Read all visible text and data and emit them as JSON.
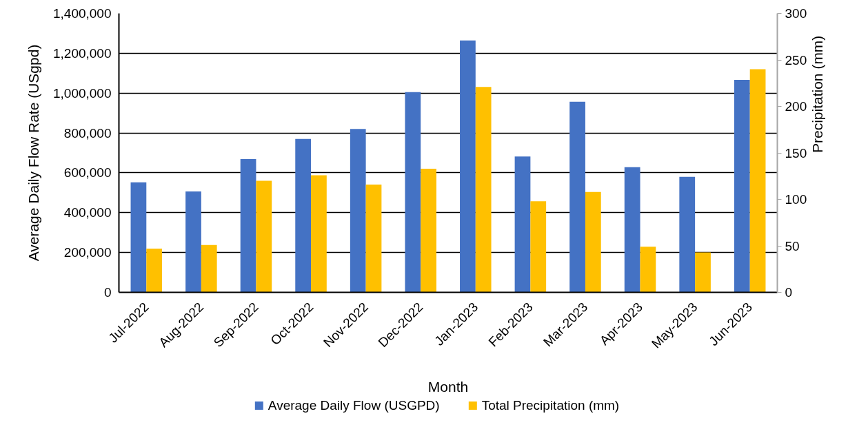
{
  "chart_data": {
    "type": "bar",
    "xlabel": "Month",
    "ylabel": "Average Daily Flow Rate (USgpd)",
    "y2label": "Precipitation (mm)",
    "categories": [
      "Jul-2022",
      "Aug-2022",
      "Sep-2022",
      "Oct-2022",
      "Nov-2022",
      "Dec-2022",
      "Jan-2023",
      "Feb-2023",
      "Mar-2023",
      "Apr-2023",
      "May-2023",
      "Jun-2023"
    ],
    "series": [
      {
        "name": "Average Daily Flow (USGPD)",
        "color": "#4472c4",
        "values": [
          552000,
          506000,
          669000,
          770000,
          820000,
          1005000,
          1264000,
          682000,
          957000,
          628000,
          580000,
          1066000
        ]
      },
      {
        "name": "Total Precipitation (mm)",
        "color": "#ffc000",
        "axis": "y2",
        "values": [
          47,
          51,
          120,
          126,
          116,
          133,
          221,
          98,
          108,
          49,
          43,
          240
        ]
      }
    ],
    "ylim": [
      0,
      1400000
    ],
    "yticks": [
      0,
      {
        "value": 200000,
        "label": "200,000"
      },
      {
        "value": 400000,
        "label": "400,000"
      },
      {
        "value": 600000,
        "label": "600,000"
      },
      {
        "value": 800000,
        "label": "800,000"
      },
      {
        "value": 1000000,
        "label": "1,000,000"
      },
      {
        "value": 1200000,
        "label": "1,200,000"
      },
      {
        "value": 1400000,
        "label": "1,400,000"
      }
    ],
    "y2lim": [
      0,
      300
    ],
    "y2ticks": [
      0,
      50,
      100,
      150,
      200,
      250,
      300
    ],
    "grid": "y",
    "legend": "bottom"
  }
}
